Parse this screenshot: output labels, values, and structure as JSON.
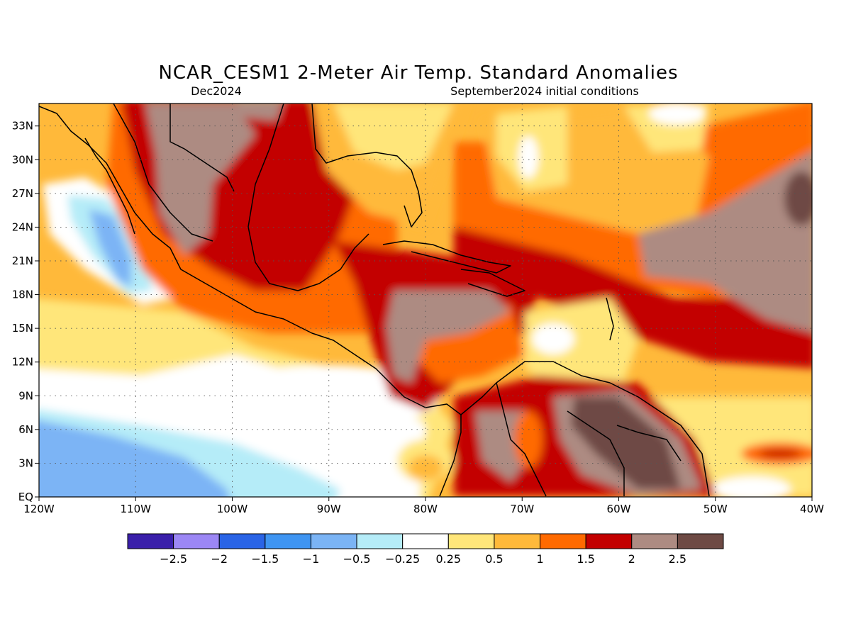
{
  "title": "NCAR_CESM1 2-Meter Air Temp. Standard Anomalies",
  "subtitle_left": "Dec2024",
  "subtitle_right": "September2024 initial conditions",
  "map": {
    "lon_labels": [
      "120W",
      "110W",
      "100W",
      "90W",
      "80W",
      "70W",
      "60W",
      "50W",
      "40W"
    ],
    "lat_labels": [
      "33N",
      "30N",
      "27N",
      "24N",
      "21N",
      "18N",
      "15N",
      "12N",
      "9N",
      "6N",
      "3N",
      "EQ"
    ],
    "lon_range": [
      -120,
      -40
    ],
    "lat_range": [
      0,
      35
    ],
    "grid": true
  },
  "legend": {
    "colors": [
      "#3a1faa",
      "#9c87f5",
      "#2a64e6",
      "#3f95f2",
      "#7bb4f5",
      "#b5ecf8",
      "#ffffff",
      "#ffe67a",
      "#ffb93a",
      "#ff6a00",
      "#c30000",
      "#ad8b82",
      "#6e4a44"
    ],
    "labels": [
      "-2.5",
      "-2",
      "-1.5",
      "-1",
      "-0.5",
      "-0.25",
      "0.25",
      "0.5",
      "1",
      "1.5",
      "2",
      "2.5"
    ]
  },
  "palette": {
    "white": "#ffffff",
    "lightblue": "#b5ecf8",
    "midblue": "#7bb4f5",
    "yellow": "#ffe67a",
    "orange": "#ffb93a",
    "darkorange": "#ff6a00",
    "red": "#c30000",
    "tan": "#ad8b82",
    "brown": "#6e4a44"
  }
}
